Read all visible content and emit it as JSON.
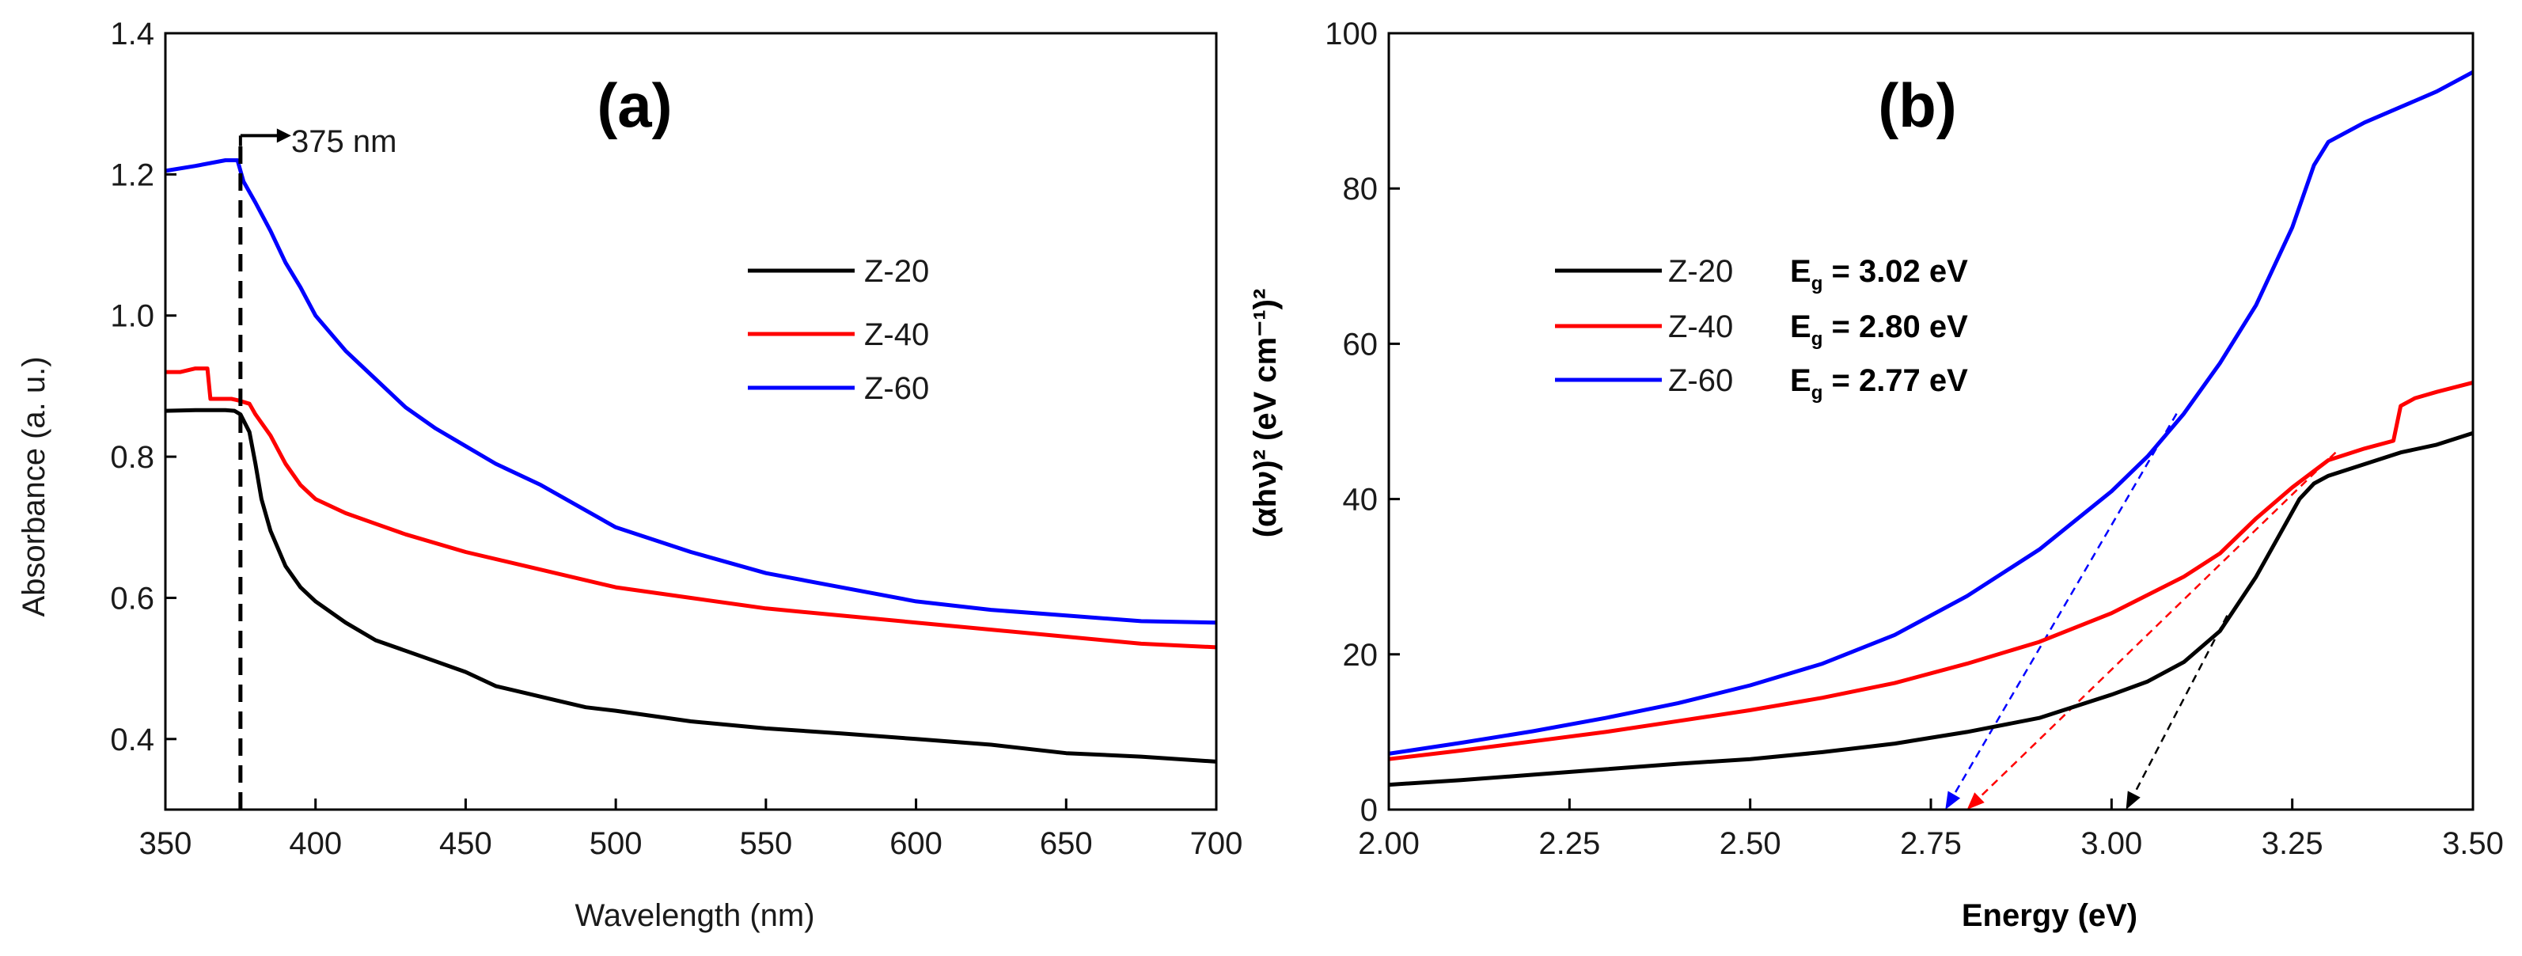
{
  "chart_data": [
    {
      "type": "line",
      "panel": "(a)",
      "title": "",
      "xlabel": "Wavelength (nm)",
      "ylabel": "Absorbance (a. u.)",
      "xlim": [
        350,
        700
      ],
      "ylim": [
        0.3,
        1.4
      ],
      "xticks": [
        350,
        400,
        450,
        500,
        550,
        600,
        650,
        700
      ],
      "yticks": [
        0.4,
        0.6,
        0.8,
        1.0,
        1.2,
        1.4
      ],
      "xtick_labels": [
        "350",
        "400",
        "450",
        "500",
        "550",
        "600",
        "650",
        "700"
      ],
      "ytick_labels": [
        "0.4",
        "0.6",
        "0.8",
        "1.0",
        "1.2",
        "1.4"
      ],
      "legend_position": "right-middle",
      "annotation": {
        "text": "375 nm",
        "x": 375
      },
      "series": [
        {
          "name": "Z-20",
          "color": "#000000",
          "points": [
            [
              350,
              0.865
            ],
            [
              360,
              0.866
            ],
            [
              370,
              0.866
            ],
            [
              373,
              0.865
            ],
            [
              375,
              0.86
            ],
            [
              378,
              0.835
            ],
            [
              380,
              0.79
            ],
            [
              382,
              0.74
            ],
            [
              385,
              0.695
            ],
            [
              390,
              0.645
            ],
            [
              395,
              0.615
            ],
            [
              400,
              0.595
            ],
            [
              410,
              0.565
            ],
            [
              420,
              0.54
            ],
            [
              430,
              0.525
            ],
            [
              440,
              0.51
            ],
            [
              450,
              0.495
            ],
            [
              460,
              0.475
            ],
            [
              470,
              0.465
            ],
            [
              480,
              0.455
            ],
            [
              490,
              0.445
            ],
            [
              500,
              0.44
            ],
            [
              525,
              0.425
            ],
            [
              550,
              0.415
            ],
            [
              575,
              0.408
            ],
            [
              600,
              0.4
            ],
            [
              625,
              0.392
            ],
            [
              650,
              0.38
            ],
            [
              675,
              0.375
            ],
            [
              700,
              0.368
            ]
          ]
        },
        {
          "name": "Z-40",
          "color": "#ff0000",
          "points": [
            [
              350,
              0.92
            ],
            [
              355,
              0.92
            ],
            [
              360,
              0.925
            ],
            [
              364,
              0.925
            ],
            [
              365,
              0.882
            ],
            [
              370,
              0.882
            ],
            [
              372,
              0.882
            ],
            [
              374,
              0.88
            ],
            [
              378,
              0.875
            ],
            [
              380,
              0.86
            ],
            [
              385,
              0.83
            ],
            [
              390,
              0.79
            ],
            [
              395,
              0.76
            ],
            [
              400,
              0.74
            ],
            [
              410,
              0.72
            ],
            [
              420,
              0.705
            ],
            [
              430,
              0.69
            ],
            [
              450,
              0.665
            ],
            [
              470,
              0.645
            ],
            [
              500,
              0.615
            ],
            [
              525,
              0.6
            ],
            [
              550,
              0.585
            ],
            [
              575,
              0.575
            ],
            [
              600,
              0.565
            ],
            [
              625,
              0.555
            ],
            [
              650,
              0.545
            ],
            [
              675,
              0.535
            ],
            [
              700,
              0.53
            ]
          ]
        },
        {
          "name": "Z-60",
          "color": "#0000ff",
          "points": [
            [
              350,
              1.205
            ],
            [
              360,
              1.212
            ],
            [
              370,
              1.22
            ],
            [
              374,
              1.22
            ],
            [
              376,
              1.19
            ],
            [
              380,
              1.16
            ],
            [
              385,
              1.12
            ],
            [
              390,
              1.075
            ],
            [
              395,
              1.04
            ],
            [
              400,
              1.0
            ],
            [
              410,
              0.95
            ],
            [
              420,
              0.91
            ],
            [
              430,
              0.87
            ],
            [
              440,
              0.84
            ],
            [
              450,
              0.815
            ],
            [
              460,
              0.79
            ],
            [
              475,
              0.76
            ],
            [
              500,
              0.7
            ],
            [
              525,
              0.665
            ],
            [
              550,
              0.635
            ],
            [
              575,
              0.615
            ],
            [
              600,
              0.595
            ],
            [
              625,
              0.583
            ],
            [
              650,
              0.575
            ],
            [
              675,
              0.567
            ],
            [
              700,
              0.565
            ]
          ]
        }
      ]
    },
    {
      "type": "line",
      "panel": "(b)",
      "title": "",
      "xlabel": "Energy (eV)",
      "ylabel": "(αhν)² (eV cm⁻¹)²",
      "xlim": [
        2.0,
        3.5
      ],
      "ylim": [
        0,
        100
      ],
      "xticks": [
        2.0,
        2.25,
        2.5,
        2.75,
        3.0,
        3.25,
        3.5
      ],
      "yticks": [
        0,
        20,
        40,
        60,
        80,
        100
      ],
      "xtick_labels": [
        "2.00",
        "2.25",
        "2.50",
        "2.75",
        "3.00",
        "3.25",
        "3.50"
      ],
      "ytick_labels": [
        "0",
        "20",
        "40",
        "60",
        "80",
        "100"
      ],
      "legend_position": "left-middle",
      "series": [
        {
          "name": "Z-20",
          "eg_label": "E",
          "eg_sub": "g",
          "eg_value": " = 3.02 eV",
          "color": "#000000",
          "points": [
            [
              2.0,
              3.2
            ],
            [
              2.1,
              3.8
            ],
            [
              2.2,
              4.5
            ],
            [
              2.3,
              5.2
            ],
            [
              2.4,
              5.9
            ],
            [
              2.5,
              6.5
            ],
            [
              2.6,
              7.4
            ],
            [
              2.7,
              8.5
            ],
            [
              2.8,
              10.0
            ],
            [
              2.9,
              11.8
            ],
            [
              3.0,
              14.8
            ],
            [
              3.05,
              16.5
            ],
            [
              3.1,
              19.0
            ],
            [
              3.15,
              23.0
            ],
            [
              3.2,
              30.0
            ],
            [
              3.23,
              35.0
            ],
            [
              3.26,
              40.0
            ],
            [
              3.28,
              42.0
            ],
            [
              3.3,
              43.0
            ],
            [
              3.35,
              44.5
            ],
            [
              3.4,
              46.0
            ],
            [
              3.45,
              47.0
            ],
            [
              3.5,
              48.5
            ]
          ],
          "tangent": [
            [
              3.02,
              0
            ],
            [
              3.16,
              25
            ]
          ]
        },
        {
          "name": "Z-40",
          "eg_label": "E",
          "eg_sub": "g",
          "eg_value": " = 2.80 eV",
          "color": "#ff0000",
          "points": [
            [
              2.0,
              6.5
            ],
            [
              2.1,
              7.6
            ],
            [
              2.2,
              8.8
            ],
            [
              2.3,
              10.0
            ],
            [
              2.4,
              11.4
            ],
            [
              2.5,
              12.8
            ],
            [
              2.6,
              14.4
            ],
            [
              2.7,
              16.3
            ],
            [
              2.8,
              18.8
            ],
            [
              2.9,
              21.6
            ],
            [
              3.0,
              25.3
            ],
            [
              3.1,
              30.0
            ],
            [
              3.15,
              33.0
            ],
            [
              3.2,
              37.5
            ],
            [
              3.25,
              41.5
            ],
            [
              3.3,
              45.0
            ],
            [
              3.35,
              46.5
            ],
            [
              3.39,
              47.5
            ],
            [
              3.4,
              52.0
            ],
            [
              3.42,
              53.0
            ],
            [
              3.45,
              53.8
            ],
            [
              3.5,
              55.0
            ]
          ],
          "tangent": [
            [
              2.8,
              0
            ],
            [
              3.31,
              46
            ]
          ]
        },
        {
          "name": "Z-60",
          "eg_label": "E",
          "eg_sub": "g",
          "eg_value": " = 2.77 eV",
          "color": "#0000ff",
          "points": [
            [
              2.0,
              7.2
            ],
            [
              2.1,
              8.6
            ],
            [
              2.2,
              10.1
            ],
            [
              2.3,
              11.8
            ],
            [
              2.4,
              13.7
            ],
            [
              2.5,
              16.0
            ],
            [
              2.6,
              18.8
            ],
            [
              2.7,
              22.5
            ],
            [
              2.8,
              27.5
            ],
            [
              2.9,
              33.5
            ],
            [
              3.0,
              41.0
            ],
            [
              3.05,
              45.5
            ],
            [
              3.1,
              51.0
            ],
            [
              3.15,
              57.5
            ],
            [
              3.2,
              65.0
            ],
            [
              3.25,
              75.0
            ],
            [
              3.28,
              83.0
            ],
            [
              3.3,
              86.0
            ],
            [
              3.35,
              88.5
            ],
            [
              3.4,
              90.5
            ],
            [
              3.45,
              92.5
            ],
            [
              3.5,
              95.0
            ]
          ],
          "tangent": [
            [
              2.77,
              0
            ],
            [
              3.09,
              51
            ]
          ]
        }
      ]
    }
  ]
}
